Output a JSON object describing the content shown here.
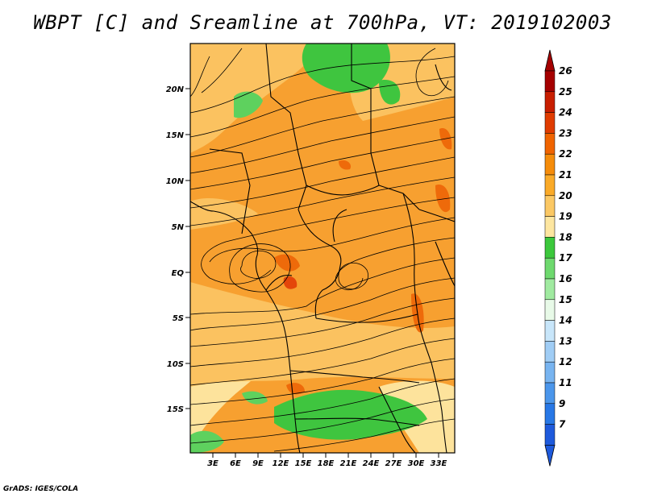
{
  "title": "WBPT [C] and Sreamline at 700hPa, VT: 2019102003",
  "credit": "GrADS: IGES/COLA",
  "map": {
    "lat_labels": [
      "20N",
      "15N",
      "10N",
      "5N",
      "EQ",
      "5S",
      "10S",
      "15S"
    ],
    "lon_labels": [
      "3E",
      "6E",
      "9E",
      "12E",
      "15E",
      "18E",
      "21E",
      "24E",
      "27E",
      "30E",
      "33E"
    ]
  },
  "colorbar": {
    "labels": [
      "26",
      "25",
      "24",
      "23",
      "22",
      "21",
      "20",
      "19",
      "18",
      "17",
      "16",
      "15",
      "14",
      "13",
      "12",
      "11",
      "9",
      "7"
    ],
    "colors": [
      "#a50000",
      "#c81e00",
      "#e03c00",
      "#f06400",
      "#f58c0a",
      "#faaa28",
      "#fbc864",
      "#fde6a0",
      "#3cc83c",
      "#6ed96e",
      "#a0eaa0",
      "#e8fae8",
      "#c8e6fa",
      "#a0cdf5",
      "#78b4f0",
      "#4b96eb",
      "#2878e6",
      "#1e5adc"
    ],
    "top_color": "#a50000",
    "bottom_color": "#1e5adc"
  }
}
